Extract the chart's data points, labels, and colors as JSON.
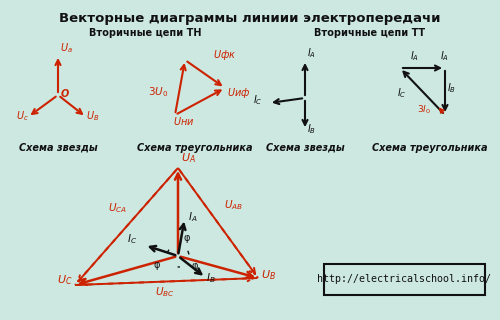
{
  "title": "Векторные диаграммы линиии электропередачи",
  "bg_color": "#cce8e0",
  "red": "#cc2200",
  "black": "#111111",
  "url_text": "http://electricalschool.info/",
  "s1_title": "Вторичные цепи ТН",
  "s2_title": "Вторичные цепи ТТ",
  "schema_z": "Схема звезды",
  "schema_t": "Схема треугольника"
}
